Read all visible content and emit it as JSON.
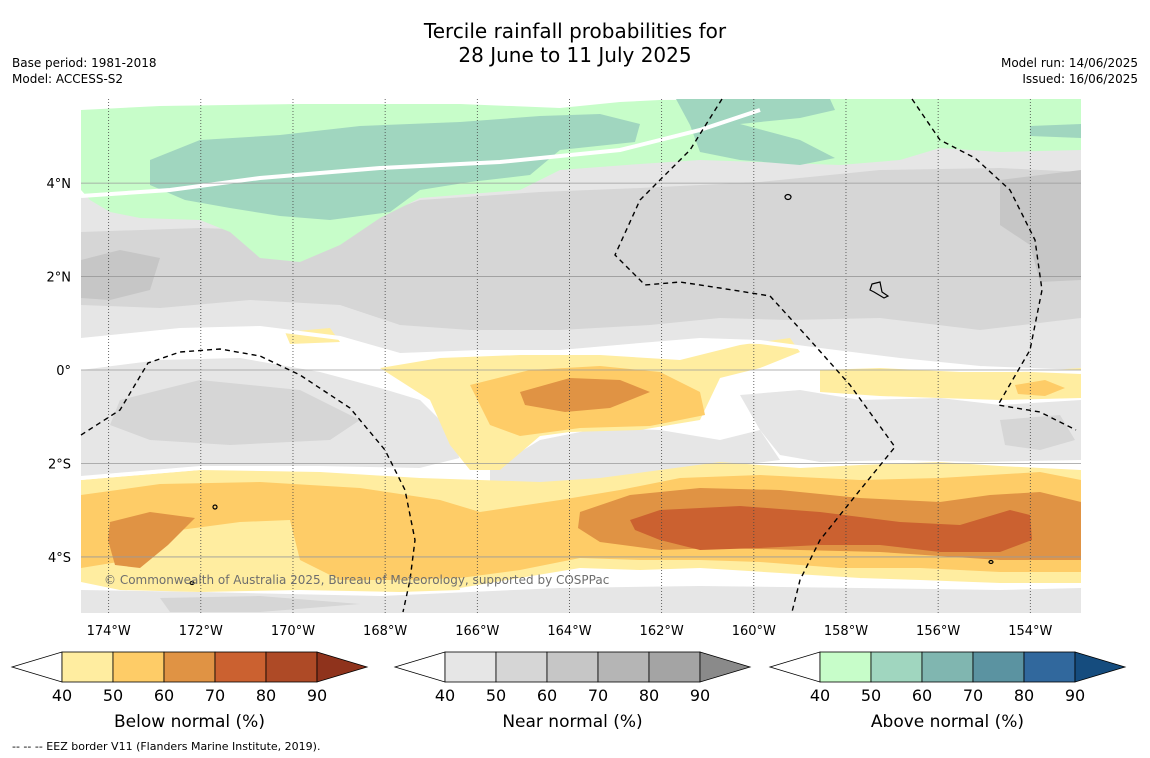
{
  "title_line1": "Tercile rainfall probabilities for",
  "title_line2": "28 June to 11 July 2025",
  "meta_left": [
    "Base period: 1981-2018",
    "Model: ACCESS-S2"
  ],
  "meta_right": [
    "Model run: 14/06/2025",
    "Issued: 16/06/2025"
  ],
  "copyright": "© Commonwealth of Australia 2025, Bureau of Meteorology, supported by COSPPac",
  "footnote": "--  --  -- EEZ border V11 (Flanders Marine Institute, 2019).",
  "map": {
    "lon_range": [
      -174.6,
      -152.9
    ],
    "lat_range": [
      -5.2,
      5.8
    ],
    "lon_ticks": [
      {
        "value": -174,
        "label": "174°W"
      },
      {
        "value": -172,
        "label": "172°W"
      },
      {
        "value": -170,
        "label": "170°W"
      },
      {
        "value": -168,
        "label": "168°W"
      },
      {
        "value": -166,
        "label": "166°W"
      },
      {
        "value": -164,
        "label": "164°W"
      },
      {
        "value": -162,
        "label": "162°W"
      },
      {
        "value": -160,
        "label": "160°W"
      },
      {
        "value": -158,
        "label": "158°W"
      },
      {
        "value": -156,
        "label": "156°W"
      },
      {
        "value": -154,
        "label": "154°W"
      }
    ],
    "lat_ticks": [
      {
        "value": 4,
        "label": "4°N"
      },
      {
        "value": 2,
        "label": "2°N"
      },
      {
        "value": 0,
        "label": "0°"
      },
      {
        "value": -2,
        "label": "2°S"
      },
      {
        "value": -4,
        "label": "4°S"
      }
    ],
    "colors": {
      "below": [
        "#ffeda0",
        "#fecc67",
        "#e09344",
        "#cb6130",
        "#ae4a26",
        "#8f331c"
      ],
      "near": [
        "#e6e6e6",
        "#d6d6d6",
        "#c6c6c6",
        "#b5b5b5",
        "#a4a4a4",
        "#8a8a8a"
      ],
      "above": [
        "#c7fdc9",
        "#a0d6bf",
        "#80b6b0",
        "#5b93a1",
        "#31689d",
        "#154c7e"
      ]
    }
  },
  "colorbars": [
    {
      "title": "Below normal (%)",
      "scheme": "below",
      "ticks": [
        "40",
        "50",
        "60",
        "70",
        "80",
        "90"
      ]
    },
    {
      "title": "Near normal (%)",
      "scheme": "near",
      "ticks": [
        "40",
        "50",
        "60",
        "70",
        "80",
        "90"
      ]
    },
    {
      "title": "Above normal (%)",
      "scheme": "above",
      "ticks": [
        "40",
        "50",
        "60",
        "70",
        "80",
        "90"
      ]
    }
  ]
}
